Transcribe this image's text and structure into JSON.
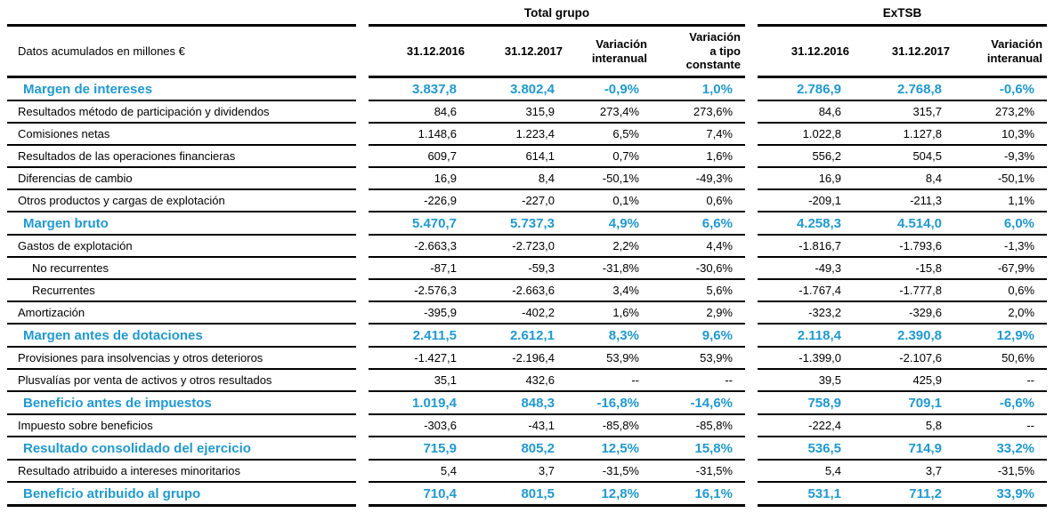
{
  "colors": {
    "accent": "#1f9ad2",
    "text": "#000000",
    "rule": "#000000"
  },
  "table": {
    "unit_label": "Datos acumulados en millones €",
    "groups": [
      {
        "label": "Total grupo",
        "columns": [
          "31.12.2016",
          "31.12.2017",
          "Variación\ninteranual",
          "Variación\na tipo\nconstante"
        ]
      },
      {
        "label": "ExTSB",
        "columns": [
          "31.12.2016",
          "31.12.2017",
          "Variación\ninteranual"
        ]
      }
    ],
    "rows": [
      {
        "label": "Margen de intereses",
        "type": "section",
        "tg": [
          "3.837,8",
          "3.802,4",
          "-0,9%",
          "1,0%"
        ],
        "ex": [
          "2.786,9",
          "2.768,8",
          "-0,6%"
        ]
      },
      {
        "label": "Resultados método de participación y dividendos",
        "type": "normal",
        "tg": [
          "84,6",
          "315,9",
          "273,4%",
          "273,6%"
        ],
        "ex": [
          "84,6",
          "315,7",
          "273,2%"
        ]
      },
      {
        "label": "Comisiones netas",
        "type": "normal",
        "tg": [
          "1.148,6",
          "1.223,4",
          "6,5%",
          "7,4%"
        ],
        "ex": [
          "1.022,8",
          "1.127,8",
          "10,3%"
        ]
      },
      {
        "label": "Resultados de las operaciones financieras",
        "type": "normal",
        "tg": [
          "609,7",
          "614,1",
          "0,7%",
          "1,6%"
        ],
        "ex": [
          "556,2",
          "504,5",
          "-9,3%"
        ]
      },
      {
        "label": "Diferencias de cambio",
        "type": "normal",
        "tg": [
          "16,9",
          "8,4",
          "-50,1%",
          "-49,3%"
        ],
        "ex": [
          "16,9",
          "8,4",
          "-50,1%"
        ]
      },
      {
        "label": "Otros productos y cargas de explotación",
        "type": "normal",
        "tg": [
          "-226,9",
          "-227,0",
          "0,1%",
          "0,6%"
        ],
        "ex": [
          "-209,1",
          "-211,3",
          "1,1%"
        ]
      },
      {
        "label": "Margen bruto",
        "type": "section",
        "tg": [
          "5.470,7",
          "5.737,3",
          "4,9%",
          "6,6%"
        ],
        "ex": [
          "4.258,3",
          "4.514,0",
          "6,0%"
        ]
      },
      {
        "label": "Gastos de explotación",
        "type": "normal",
        "tg": [
          "-2.663,3",
          "-2.723,0",
          "2,2%",
          "4,4%"
        ],
        "ex": [
          "-1.816,7",
          "-1.793,6",
          "-1,3%"
        ]
      },
      {
        "label": "No recurrentes",
        "type": "sub",
        "tg": [
          "-87,1",
          "-59,3",
          "-31,8%",
          "-30,6%"
        ],
        "ex": [
          "-49,3",
          "-15,8",
          "-67,9%"
        ]
      },
      {
        "label": "Recurrentes",
        "type": "sub",
        "tg": [
          "-2.576,3",
          "-2.663,6",
          "3,4%",
          "5,6%"
        ],
        "ex": [
          "-1.767,4",
          "-1.777,8",
          "0,6%"
        ]
      },
      {
        "label": "Amortización",
        "type": "normal",
        "tg": [
          "-395,9",
          "-402,2",
          "1,6%",
          "2,9%"
        ],
        "ex": [
          "-323,2",
          "-329,6",
          "2,0%"
        ]
      },
      {
        "label": "Margen antes de dotaciones",
        "type": "section",
        "tg": [
          "2.411,5",
          "2.612,1",
          "8,3%",
          "9,6%"
        ],
        "ex": [
          "2.118,4",
          "2.390,8",
          "12,9%"
        ]
      },
      {
        "label": "Provisiones para insolvencias y otros deterioros",
        "type": "normal",
        "tg": [
          "-1.427,1",
          "-2.196,4",
          "53,9%",
          "53,9%"
        ],
        "ex": [
          "-1.399,0",
          "-2.107,6",
          "50,6%"
        ]
      },
      {
        "label": "Plusvalías por venta de activos y otros resultados",
        "type": "normal",
        "tg": [
          "35,1",
          "432,6",
          "--",
          "--"
        ],
        "ex": [
          "39,5",
          "425,9",
          "--"
        ]
      },
      {
        "label": "Beneficio antes de impuestos",
        "type": "section",
        "tg": [
          "1.019,4",
          "848,3",
          "-16,8%",
          "-14,6%"
        ],
        "ex": [
          "758,9",
          "709,1",
          "-6,6%"
        ]
      },
      {
        "label": "Impuesto sobre beneficios",
        "type": "normal",
        "tg": [
          "-303,6",
          "-43,1",
          "-85,8%",
          "-85,8%"
        ],
        "ex": [
          "-222,4",
          "5,8",
          "--"
        ]
      },
      {
        "label": "Resultado consolidado del ejercicio",
        "type": "section",
        "tg": [
          "715,9",
          "805,2",
          "12,5%",
          "15,8%"
        ],
        "ex": [
          "536,5",
          "714,9",
          "33,2%"
        ]
      },
      {
        "label": "Resultado atribuido a intereses minoritarios",
        "type": "normal",
        "tg": [
          "5,4",
          "3,7",
          "-31,5%",
          "-31,5%"
        ],
        "ex": [
          "5,4",
          "3,7",
          "-31,5%"
        ]
      },
      {
        "label": "Beneficio atribuido al grupo",
        "type": "section",
        "tg": [
          "710,4",
          "801,5",
          "12,8%",
          "16,1%"
        ],
        "ex": [
          "531,1",
          "711,2",
          "33,9%"
        ]
      }
    ]
  }
}
